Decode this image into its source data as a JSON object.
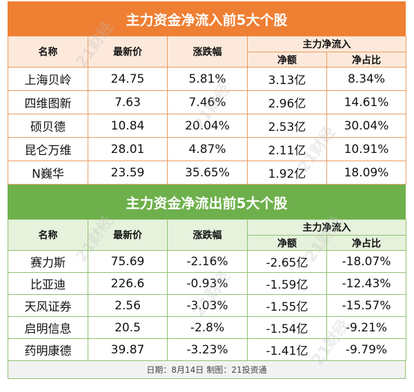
{
  "inflow": {
    "title": "主力资金净流入前5大个股",
    "headers": {
      "name": "名称",
      "price": "最新价",
      "change": "涨跌幅",
      "group": "主力净流入",
      "net": "净额",
      "ratio": "净占比"
    },
    "rows": [
      {
        "name": "上海贝岭",
        "price": "24.75",
        "change": "5.81%",
        "net": "3.13亿",
        "ratio": "8.34%"
      },
      {
        "name": "四维图新",
        "price": "7.63",
        "change": "7.46%",
        "net": "2.96亿",
        "ratio": "14.61%"
      },
      {
        "name": "硕贝德",
        "price": "10.84",
        "change": "20.04%",
        "net": "2.53亿",
        "ratio": "30.04%"
      },
      {
        "name": "昆仑万维",
        "price": "28.01",
        "change": "4.87%",
        "net": "2.11亿",
        "ratio": "10.91%"
      },
      {
        "name": "N巍华",
        "price": "23.59",
        "change": "35.65%",
        "net": "1.92亿",
        "ratio": "18.09%"
      }
    ]
  },
  "outflow": {
    "title": "主力资金净流出前5大个股",
    "headers": {
      "name": "名称",
      "price": "最新价",
      "change": "涨跌幅",
      "group": "主力净流入",
      "net": "净额",
      "ratio": "净占比"
    },
    "rows": [
      {
        "name": "赛力斯",
        "price": "75.69",
        "change": "-2.16%",
        "net": "-2.65亿",
        "ratio": "-18.07%"
      },
      {
        "name": "比亚迪",
        "price": "226.6",
        "change": "-0.93%",
        "net": "-1.59亿",
        "ratio": "-12.43%"
      },
      {
        "name": "天风证券",
        "price": "2.56",
        "change": "-3.03%",
        "net": "-1.55亿",
        "ratio": "-15.57%"
      },
      {
        "name": "启明信息",
        "price": "20.5",
        "change": "-2.8%",
        "net": "-1.54亿",
        "ratio": "-9.21%"
      },
      {
        "name": "药明康德",
        "price": "39.87",
        "change": "-3.23%",
        "net": "-1.41亿",
        "ratio": "-9.79%"
      }
    ]
  },
  "footer": {
    "date": "日期：8月14日",
    "maker": "制图：21投资通"
  },
  "watermark": "21财经",
  "colors": {
    "inflow_accent": "#ef7f33",
    "outflow_accent": "#6eb04c"
  }
}
